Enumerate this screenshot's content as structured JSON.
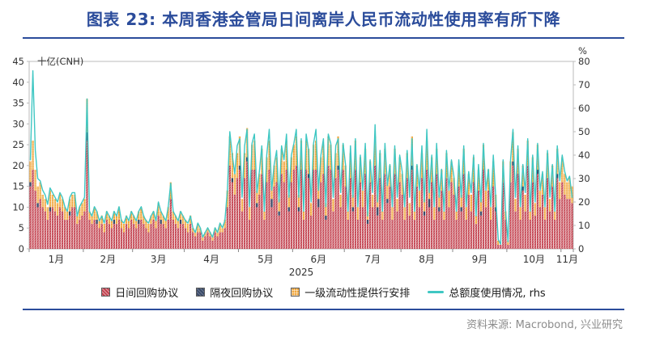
{
  "title": "图表 23: 本周香港金管局日间离岸人民币流动性使用率有所下降",
  "source": "资料来源: Macrobond, 兴业研究",
  "accent_color": "#2B4C9B",
  "chart_data": {
    "type": "bar",
    "subtype": "stacked-bars-with-line-overlay",
    "left_axis": {
      "label": "十亿(CNH)",
      "min": 0,
      "max": 45,
      "ticks": [
        0,
        5,
        10,
        15,
        20,
        25,
        30,
        35,
        40,
        45
      ]
    },
    "right_axis": {
      "label": "%",
      "min": 0,
      "max": 80,
      "ticks": [
        0,
        10,
        20,
        30,
        40,
        50,
        60,
        70,
        80
      ]
    },
    "x_axis": {
      "year_label": "2025",
      "month_labels": [
        "1月",
        "2月",
        "3月",
        "4月",
        "5月",
        "6月",
        "7月",
        "8月",
        "9月",
        "10月",
        "11月"
      ],
      "month_start_indices": [
        0,
        22,
        42,
        63,
        85,
        107,
        128,
        151,
        172,
        194,
        216
      ],
      "total_points": 221
    },
    "grid": "off",
    "legend_position": "bottom",
    "series": [
      {
        "name": "日间回购协议",
        "type": "bar",
        "axis": "left",
        "color": "#C2414E",
        "texture": "diagonal-hatch",
        "values": [
          15,
          19,
          14,
          10,
          12,
          10,
          9,
          7,
          9,
          10,
          9,
          8,
          10,
          9,
          7,
          7,
          8,
          10,
          10,
          6,
          7,
          8,
          9,
          26,
          7,
          6,
          7,
          6,
          5,
          6,
          4,
          7,
          6,
          5,
          6,
          6,
          7,
          5,
          4,
          6,
          5,
          7,
          6,
          5,
          6,
          7,
          6,
          5,
          4,
          6,
          7,
          5,
          8,
          6,
          6,
          5,
          7,
          12,
          7,
          6,
          5,
          6,
          6,
          5,
          4,
          6,
          4,
          3,
          4,
          4,
          2,
          3,
          4,
          3,
          2,
          4,
          3,
          4,
          4,
          5,
          10,
          20,
          16,
          13,
          17,
          19,
          9,
          17,
          21,
          7,
          19,
          19,
          10,
          13,
          18,
          7,
          16,
          19,
          10,
          15,
          16,
          8,
          18,
          16,
          19,
          9,
          16,
          19,
          20,
          9,
          19,
          7,
          19,
          17,
          8,
          19,
          19,
          10,
          16,
          18,
          7,
          20,
          19,
          9,
          17,
          19,
          10,
          19,
          15,
          7,
          17,
          9,
          19,
          7,
          16,
          10,
          18,
          6,
          16,
          10,
          20,
          8,
          17,
          7,
          18,
          11,
          15,
          7,
          18,
          9,
          16,
          13,
          7,
          17,
          8,
          19,
          7,
          15,
          10,
          17,
          8,
          19,
          10,
          16,
          7,
          18,
          9,
          14,
          7,
          17,
          10,
          16,
          13,
          7,
          15,
          9,
          18,
          7,
          13,
          9,
          16,
          6,
          14,
          8,
          19,
          10,
          14,
          7,
          15,
          9,
          1,
          1,
          16,
          7,
          1,
          16,
          20,
          9,
          18,
          7,
          14,
          9,
          20,
          7,
          16,
          8,
          18,
          10,
          13,
          7,
          17,
          9,
          15,
          7,
          17,
          12,
          16,
          13,
          12,
          12,
          11
        ]
      },
      {
        "name": "隔夜回购协议",
        "type": "bar",
        "axis": "left",
        "color": "#3A4A68",
        "texture": "solid",
        "values": [
          1,
          0,
          0,
          1,
          0,
          0,
          0,
          0,
          1,
          0,
          0,
          0,
          0,
          0,
          0,
          0,
          1,
          0,
          0,
          0,
          0,
          0,
          0,
          2,
          0,
          0,
          0,
          1,
          0,
          0,
          0,
          0,
          0,
          0,
          1,
          0,
          0,
          0,
          0,
          0,
          0,
          0,
          0,
          0,
          1,
          0,
          0,
          0,
          0,
          0,
          0,
          0,
          0,
          1,
          0,
          0,
          0,
          0,
          0,
          0,
          0,
          1,
          0,
          0,
          0,
          0,
          0,
          0,
          0,
          0,
          0,
          0,
          0,
          0,
          0,
          0,
          0,
          0,
          0,
          0,
          0,
          0,
          1,
          0,
          0,
          1,
          0,
          0,
          1,
          0,
          0,
          0,
          1,
          0,
          0,
          0,
          0,
          0,
          2,
          0,
          0,
          1,
          0,
          0,
          0,
          1,
          0,
          0,
          0,
          1,
          0,
          0,
          0,
          1,
          0,
          0,
          0,
          2,
          0,
          0,
          1,
          0,
          0,
          0,
          0,
          1,
          0,
          0,
          0,
          0,
          0,
          1,
          0,
          0,
          0,
          0,
          0,
          1,
          0,
          0,
          0,
          2,
          0,
          0,
          0,
          1,
          0,
          0,
          0,
          0,
          0,
          0,
          0,
          0,
          0,
          1,
          0,
          0,
          0,
          0,
          1,
          0,
          2,
          0,
          0,
          0,
          1,
          0,
          0,
          0,
          0,
          0,
          0,
          0,
          0,
          1,
          0,
          0,
          0,
          0,
          0,
          0,
          0,
          1,
          0,
          0,
          0,
          0,
          0,
          1,
          0,
          0,
          0,
          0,
          0,
          0,
          1,
          0,
          0,
          0,
          1,
          0,
          0,
          0,
          0,
          0,
          1,
          0,
          0,
          0,
          0,
          0,
          0,
          0,
          1,
          0,
          0,
          0,
          0,
          0,
          0
        ]
      },
      {
        "name": "一级流动性提供行安排",
        "type": "bar",
        "axis": "left",
        "color": "#F0A73E",
        "texture": "cross-hatch",
        "values": [
          5,
          7,
          5,
          4,
          4,
          3,
          3,
          3,
          4,
          3,
          3,
          3,
          3,
          3,
          3,
          2,
          3,
          3,
          3,
          2,
          3,
          3,
          3,
          8,
          2,
          2,
          3,
          2,
          2,
          2,
          2,
          2,
          2,
          2,
          2,
          2,
          3,
          2,
          2,
          2,
          2,
          2,
          2,
          2,
          2,
          3,
          2,
          2,
          2,
          2,
          2,
          2,
          3,
          2,
          2,
          2,
          3,
          4,
          2,
          2,
          2,
          2,
          2,
          2,
          2,
          2,
          1,
          1,
          2,
          1,
          1,
          1,
          1,
          1,
          1,
          1,
          1,
          2,
          1,
          2,
          4,
          7,
          6,
          5,
          6,
          7,
          3,
          6,
          7,
          3,
          6,
          7,
          3,
          5,
          6,
          2,
          6,
          7,
          4,
          5,
          6,
          3,
          6,
          5,
          7,
          3,
          6,
          6,
          7,
          3,
          7,
          2,
          7,
          6,
          3,
          6,
          7,
          4,
          6,
          7,
          3,
          7,
          6,
          3,
          6,
          7,
          3,
          6,
          5,
          2,
          6,
          3,
          7,
          3,
          6,
          4,
          6,
          2,
          5,
          3,
          7,
          3,
          6,
          2,
          6,
          4,
          5,
          3,
          6,
          3,
          6,
          5,
          3,
          6,
          3,
          7,
          2,
          5,
          4,
          6,
          3,
          7,
          3,
          6,
          3,
          6,
          3,
          5,
          2,
          6,
          4,
          5,
          4,
          2,
          5,
          3,
          6,
          3,
          5,
          4,
          6,
          2,
          5,
          3,
          6,
          4,
          5,
          3,
          6,
          3,
          1,
          0,
          5,
          2,
          1,
          5,
          7,
          3,
          6,
          3,
          5,
          4,
          6,
          2,
          6,
          3,
          6,
          4,
          5,
          3,
          6,
          3,
          5,
          2,
          6,
          4,
          6,
          5,
          4,
          5,
          4
        ]
      },
      {
        "name": "总额度使用情况, rhs",
        "type": "line",
        "axis": "right",
        "color": "#3FC7C3",
        "texture": "solid",
        "values": [
          38,
          76,
          42,
          30,
          29,
          25,
          23,
          19,
          26,
          24,
          22,
          20,
          24,
          22,
          18,
          16,
          22,
          24,
          24,
          14,
          18,
          20,
          22,
          64,
          16,
          14,
          18,
          16,
          12,
          14,
          11,
          16,
          14,
          12,
          16,
          14,
          18,
          12,
          11,
          14,
          12,
          16,
          14,
          12,
          16,
          18,
          14,
          12,
          11,
          14,
          16,
          12,
          20,
          16,
          14,
          12,
          18,
          28,
          16,
          14,
          12,
          16,
          14,
          12,
          11,
          14,
          9,
          7,
          11,
          9,
          5,
          7,
          9,
          7,
          5,
          9,
          7,
          11,
          9,
          12,
          25,
          50,
          40,
          32,
          44,
          47,
          22,
          44,
          51,
          18,
          45,
          49,
          24,
          33,
          44,
          16,
          40,
          51,
          25,
          36,
          42,
          20,
          44,
          38,
          49,
          22,
          40,
          45,
          51,
          22,
          47,
          16,
          49,
          42,
          20,
          45,
          51,
          25,
          40,
          47,
          18,
          49,
          45,
          22,
          44,
          47,
          24,
          45,
          36,
          16,
          44,
          22,
          47,
          18,
          40,
          25,
          45,
          14,
          38,
          24,
          53,
          20,
          42,
          16,
          45,
          27,
          36,
          18,
          44,
          22,
          40,
          33,
          18,
          42,
          22,
          47,
          16,
          36,
          25,
          44,
          20,
          51,
          24,
          40,
          18,
          45,
          22,
          34,
          16,
          42,
          25,
          38,
          31,
          16,
          38,
          22,
          44,
          18,
          33,
          24,
          40,
          14,
          36,
          20,
          45,
          25,
          34,
          18,
          40,
          22,
          4,
          2,
          38,
          16,
          3,
          38,
          51,
          22,
          44,
          18,
          36,
          24,
          47,
          16,
          40,
          20,
          45,
          25,
          33,
          18,
          42,
          22,
          36,
          16,
          44,
          29,
          40,
          33,
          29,
          31,
          22
        ]
      }
    ]
  }
}
